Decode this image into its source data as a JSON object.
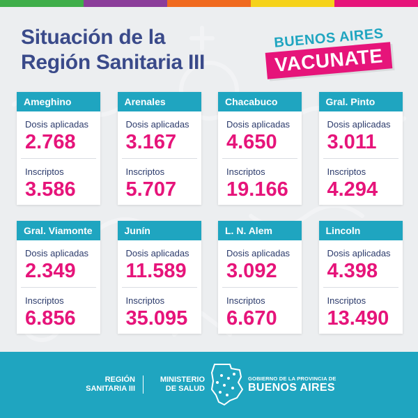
{
  "colors": {
    "teal": "#1fa5c0",
    "magenta": "#e6147a",
    "navy": "#3a4a8a",
    "topbar": [
      "#3fae4a",
      "#8b3d9a",
      "#f06a1f",
      "#f5d21a",
      "#e6147a"
    ]
  },
  "title": {
    "line1": "Situación de la",
    "line2": "Región Sanitaria III"
  },
  "logo": {
    "top": "BUENOS AIRES",
    "bottom": "VACUNATE"
  },
  "labels": {
    "dosis": "Dosis aplicadas",
    "inscriptos": "Inscriptos"
  },
  "cards": [
    {
      "name": "Ameghino",
      "dosis": "2.768",
      "inscriptos": "3.586"
    },
    {
      "name": "Arenales",
      "dosis": "3.167",
      "inscriptos": "5.707"
    },
    {
      "name": "Chacabuco",
      "dosis": "4.650",
      "inscriptos": "19.166"
    },
    {
      "name": "Gral. Pinto",
      "dosis": "3.011",
      "inscriptos": "4.294"
    },
    {
      "name": "Gral. Viamonte",
      "dosis": "2.349",
      "inscriptos": "6.856"
    },
    {
      "name": "Junín",
      "dosis": "11.589",
      "inscriptos": "35.095"
    },
    {
      "name": "L. N. Alem",
      "dosis": "3.092",
      "inscriptos": "6.670"
    },
    {
      "name": "Lincoln",
      "dosis": "4.398",
      "inscriptos": "13.490"
    }
  ],
  "footer": {
    "region_line1": "REGIÓN",
    "region_line2": "SANITARIA III",
    "ministerio_line1": "MINISTERIO",
    "ministerio_line2": "DE SALUD",
    "gov_line1": "GOBIERNO DE LA PROVINCIA DE",
    "gov_line2": "BUENOS AIRES"
  }
}
